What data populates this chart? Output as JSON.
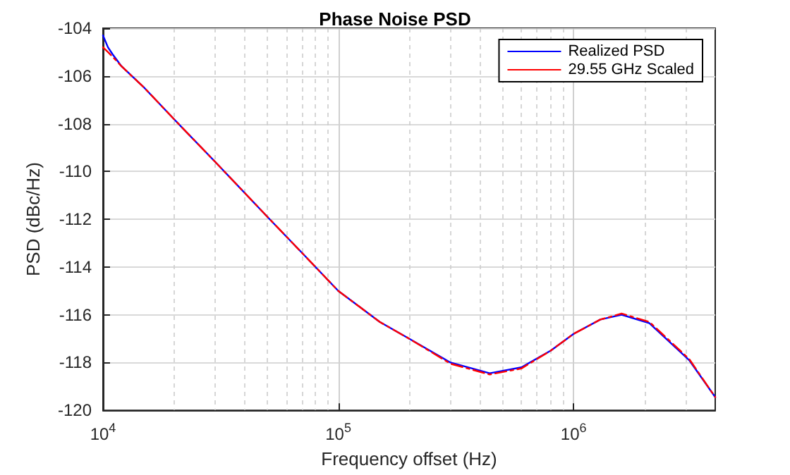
{
  "chart_data": {
    "type": "line",
    "title": "Phase Noise PSD",
    "xlabel": "Frequency offset (Hz)",
    "ylabel": "PSD (dBc/Hz)",
    "log": "x",
    "grid": true,
    "legend": "top right",
    "xlim": [
      10000,
      4000000
    ],
    "xticks": [
      {
        "value": 10000,
        "label": "10$^{4}$"
      },
      {
        "value": 100000,
        "label": "10$^{5}$"
      },
      {
        "value": 1000000,
        "label": "10$^{6}$"
      }
    ],
    "ylim": [
      -120,
      -104
    ],
    "yticks": [
      -120,
      -118,
      -116,
      -114,
      -112,
      -110,
      -108,
      -106,
      -104
    ],
    "x": [
      10000,
      10500,
      11000,
      12000,
      15000,
      20000,
      30000,
      50000,
      70000,
      100000,
      150000,
      200000,
      300000,
      440000,
      600000,
      800000,
      1000000,
      1300000,
      1600000,
      2100000,
      3100000,
      4000000
    ],
    "series": [
      {
        "name": "Realized PSD",
        "color": "#0000ff",
        "line_style": "solid",
        "values": [
          -104.3,
          -104.8,
          -105.1,
          -105.6,
          -106.5,
          -107.8,
          -109.6,
          -111.9,
          -113.4,
          -115.0,
          -116.3,
          -117.0,
          -118.0,
          -118.45,
          -118.2,
          -117.5,
          -116.8,
          -116.2,
          -116.0,
          -116.35,
          -117.9,
          -119.45
        ]
      },
      {
        "name": "29.55 GHz Scaled",
        "color": "#ff0000",
        "line_style": "dashed",
        "values": [
          -104.8,
          -105.0,
          -105.2,
          -105.6,
          -106.5,
          -107.8,
          -109.6,
          -111.9,
          -113.4,
          -115.0,
          -116.3,
          -117.0,
          -118.05,
          -118.5,
          -118.25,
          -117.5,
          -116.8,
          -116.2,
          -115.95,
          -116.3,
          -117.85,
          -119.45
        ]
      }
    ]
  }
}
